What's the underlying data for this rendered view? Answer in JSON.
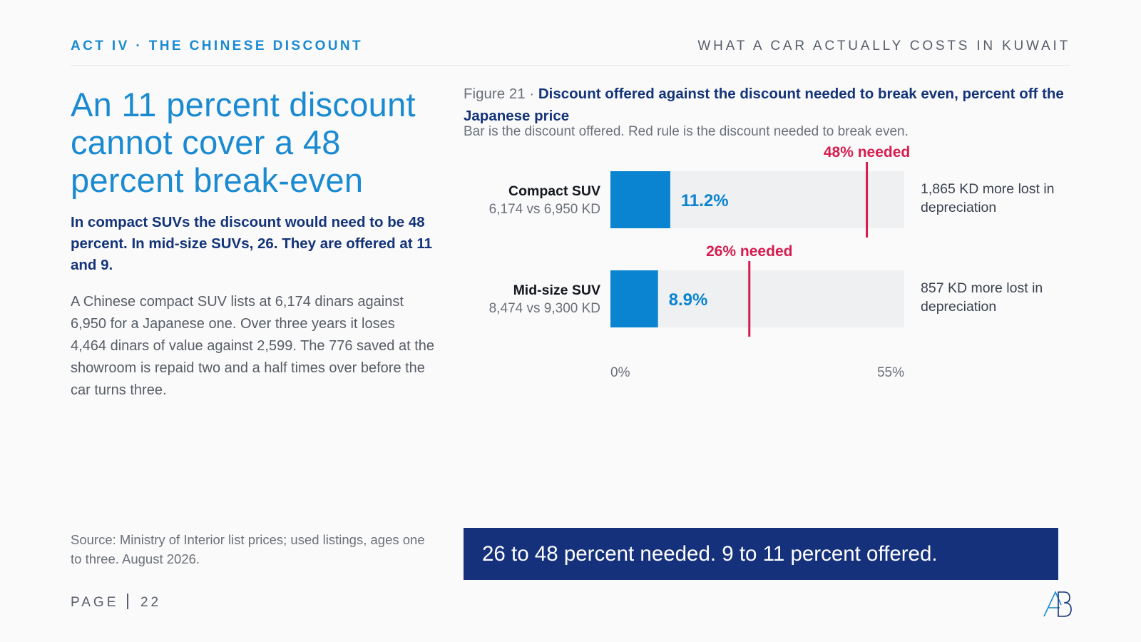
{
  "header": {
    "act": "ACT IV · THE CHINESE DISCOUNT",
    "document": "WHAT A CAR ACTUALLY COSTS IN KUWAIT"
  },
  "left": {
    "headline": "An 11 percent discount cannot cover a 48 percent break-even",
    "deck": "In compact SUVs the discount would need to be 48 percent. In mid-size SUVs, 26. They are offered at 11 and 9.",
    "body": "A Chinese compact SUV lists at 6,174 dinars against 6,950 for a Japanese one. Over three years it loses 4,464 dinars of value against 2,599. The 776 saved at the showroom is repaid two and a half times over before the car turns three.",
    "source": "Source: Ministry of Interior list prices; used listings, ages one to three. August 2026."
  },
  "footer": {
    "page_label": "PAGE",
    "page_number": "22"
  },
  "figure": {
    "number": "Figure 21 ·",
    "title": "Discount offered against the discount needed to break even, percent off the Japanese price",
    "subtitle": "Bar is the discount offered. Red rule is the discount needed to break even."
  },
  "callout": "26 to 48 percent needed. 9 to 11 percent offered.",
  "colors": {
    "accent": "#1a8ad1",
    "bar": "#0a84d0",
    "track": "#eff0f2",
    "needed": "#d61c4e",
    "navy": "#15317b"
  },
  "chart_data": {
    "type": "bar",
    "orientation": "horizontal",
    "xlim": [
      0,
      55
    ],
    "x_tick_labels": [
      "0%",
      "55%"
    ],
    "categories": [
      {
        "name": "Compact SUV",
        "detail": "6,174 vs 6,950 KD",
        "offered": 11.2,
        "offered_label": "11.2%",
        "needed": 48,
        "needed_label": "48% needed",
        "note": "1,865 KD more lost in depreciation"
      },
      {
        "name": "Mid-size SUV",
        "detail": "8,474 vs 9,300 KD",
        "offered": 8.9,
        "offered_label": "8.9%",
        "needed": 26,
        "needed_label": "26% needed",
        "note": "857 KD more lost in depreciation"
      }
    ]
  }
}
